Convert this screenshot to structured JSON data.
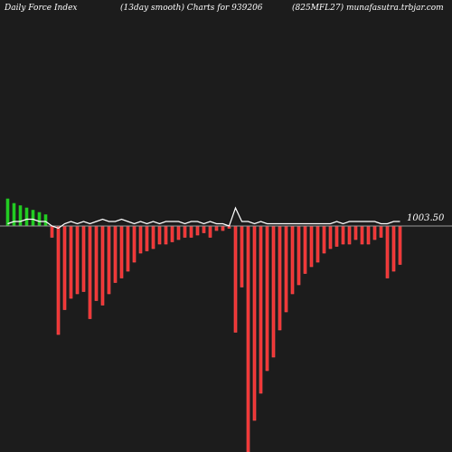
{
  "header": {
    "left": "Daily Force  Index",
    "middle": "(13day smooth) Charts for 939206",
    "right": "(825MFL27) munafasutra.trbjar.com"
  },
  "colors": {
    "background": "#1c1c1c",
    "positive": "#22cc22",
    "negative": "#ee3333",
    "line": "#ffffff",
    "baseline": "#999999"
  },
  "chart_data": {
    "type": "bar",
    "baseline_label": "1003.50",
    "ylim": [
      -1.0,
      0.2
    ],
    "values": [
      0.12,
      0.1,
      0.09,
      0.08,
      0.07,
      0.06,
      0.05,
      -0.05,
      -0.48,
      -0.37,
      -0.32,
      -0.3,
      -0.29,
      -0.41,
      -0.33,
      -0.35,
      -0.3,
      -0.25,
      -0.23,
      -0.2,
      -0.16,
      -0.12,
      -0.11,
      -0.1,
      -0.08,
      -0.08,
      -0.07,
      -0.06,
      -0.05,
      -0.05,
      -0.04,
      -0.03,
      -0.05,
      -0.02,
      -0.02,
      -0.01,
      -0.47,
      -0.27,
      -1.0,
      -0.86,
      -0.74,
      -0.64,
      -0.58,
      -0.46,
      -0.38,
      -0.3,
      -0.26,
      -0.21,
      -0.18,
      -0.16,
      -0.12,
      -0.1,
      -0.09,
      -0.08,
      -0.08,
      -0.06,
      -0.08,
      -0.08,
      -0.06,
      -0.05,
      -0.23,
      -0.2,
      -0.17
    ],
    "line_values": [
      0.01,
      0.02,
      0.02,
      0.03,
      0.03,
      0.02,
      0.02,
      0.0,
      -0.01,
      0.01,
      0.02,
      0.01,
      0.02,
      0.01,
      0.02,
      0.03,
      0.02,
      0.02,
      0.03,
      0.02,
      0.01,
      0.02,
      0.01,
      0.02,
      0.01,
      0.02,
      0.02,
      0.02,
      0.01,
      0.02,
      0.02,
      0.01,
      0.02,
      0.01,
      0.01,
      0.0,
      0.08,
      0.02,
      0.02,
      0.01,
      0.02,
      0.01,
      0.01,
      0.01,
      0.01,
      0.01,
      0.01,
      0.01,
      0.01,
      0.01,
      0.01,
      0.01,
      0.02,
      0.01,
      0.02,
      0.02,
      0.02,
      0.02,
      0.02,
      0.01,
      0.01,
      0.02,
      0.02
    ],
    "legend": "none",
    "grid": false
  }
}
